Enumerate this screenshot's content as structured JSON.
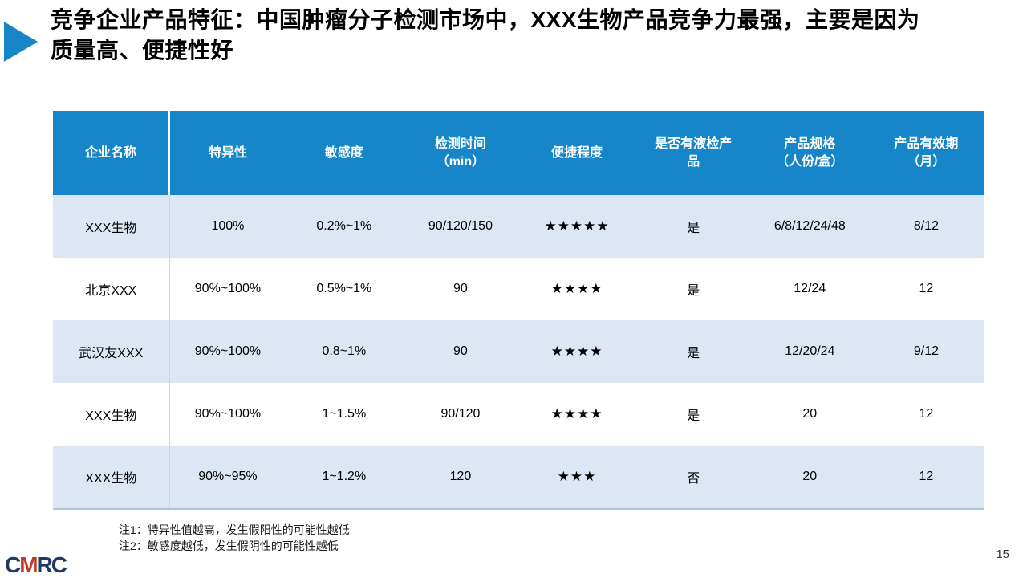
{
  "slide": {
    "title": "竞争企业产品特征：中国肿瘤分子检测市场中，XXX生物产品竞争力最强，主要是因为质量高、便捷性好",
    "page_number": "15"
  },
  "logo": {
    "c": "C",
    "m": "M",
    "rc": "RC"
  },
  "table": {
    "headers": [
      "企业名称",
      "特异性",
      "敏感度",
      "检测时间\n（min）",
      "便捷程度",
      "是否有液检产\n品",
      "产品规格\n（人份/盒）",
      "产品有效期\n（月）"
    ],
    "rows": [
      [
        "XXX生物",
        "100%",
        "0.2%~1%",
        "90/120/150",
        "★★★★★",
        "是",
        "6/8/12/24/48",
        "8/12"
      ],
      [
        "北京XXX",
        "90%~100%",
        "0.5%~1%",
        "90",
        "★★★★",
        "是",
        "12/24",
        "12"
      ],
      [
        "武汉友XXX",
        "90%~100%",
        "0.8~1%",
        "90",
        "★★★★",
        "是",
        "12/20/24",
        "9/12"
      ],
      [
        "XXX生物",
        "90%~100%",
        "1~1.5%",
        "90/120",
        "★★★★",
        "是",
        "20",
        "12"
      ],
      [
        "XXX生物",
        "90%~95%",
        "1~1.2%",
        "120",
        "★★★",
        "否",
        "20",
        "12"
      ]
    ]
  },
  "notes": [
    "注1：特异性值越高，发生假阳性的可能性越低",
    "注2：敏感度越低，发生假阴性的可能性越低"
  ],
  "colors": {
    "accent_blue": "#1786C8",
    "row_alt_blue": "#DCE7F3",
    "table_bottom_border": "#A8C6E0",
    "logo_navy": "#203864",
    "logo_red": "#C0392B"
  }
}
